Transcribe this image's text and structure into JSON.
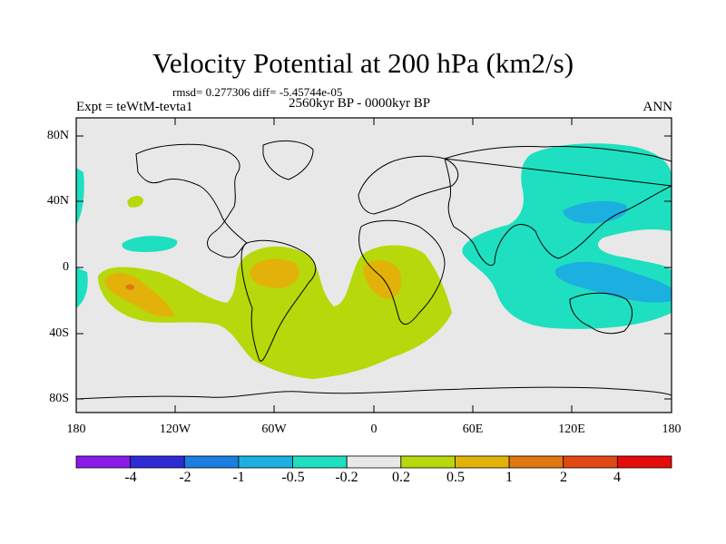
{
  "figure": {
    "title": "Velocity Potential at 200 hPa (km2/s)",
    "stats": "rmsd= 0.277306 diff= -5.45744e-05",
    "experiment": "Expt = teWtM-tevta1",
    "period": "2560kyr BP - 0000kyr BP",
    "season": "ANN"
  },
  "axes": {
    "y_ticks": [
      "80N",
      "40N",
      "0",
      "40S",
      "80S"
    ],
    "x_ticks": [
      "180",
      "120W",
      "60W",
      "0",
      "60E",
      "120E",
      "180"
    ]
  },
  "colorbar": {
    "labels": [
      "-4",
      "-2",
      "-1",
      "-0.5",
      "-0.2",
      "0.2",
      "0.5",
      "1",
      "2",
      "4"
    ],
    "colors": [
      "#8a1ae6",
      "#2d2ad6",
      "#1a7fe0",
      "#1cb0e0",
      "#1ee0c0",
      "#e8e8e8",
      "#b7d80a",
      "#e2b20a",
      "#e07812",
      "#e04814",
      "#e60c0c"
    ]
  },
  "colors": {
    "neutral_fill": "#e8e8e8",
    "negative_fill": "#1ee0c0",
    "negative_deep": "#1cb0e0",
    "positive_fill": "#b7d80a",
    "positive_deep": "#e2b20a"
  }
}
